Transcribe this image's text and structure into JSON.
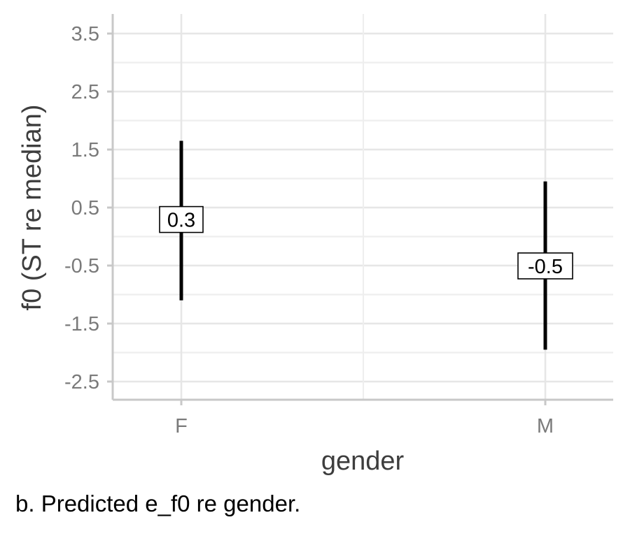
{
  "chart_data": {
    "type": "errorbar",
    "categories": [
      "F",
      "M"
    ],
    "estimates": [
      0.3,
      -0.5
    ],
    "lower": [
      -1.1,
      -1.95
    ],
    "upper": [
      1.65,
      0.95
    ],
    "data_labels": [
      "0.3",
      "-0.5"
    ],
    "xlabel": "gender",
    "ylabel": "f0 (ST re median)",
    "yticks": [
      "3.5",
      "2.5",
      "1.5",
      "0.5",
      "-0.5",
      "-1.5",
      "-2.5"
    ],
    "ylim": [
      -2.8,
      3.85
    ],
    "grid": true,
    "legend": "none",
    "colors": {
      "bar": "#000000",
      "grid_major": "#e6e6e6",
      "grid_minor": "#eeeeee",
      "axis": "#c8c8c8",
      "tick_text": "#7a7a7a"
    }
  },
  "caption": "b. Predicted e_f0 re gender."
}
